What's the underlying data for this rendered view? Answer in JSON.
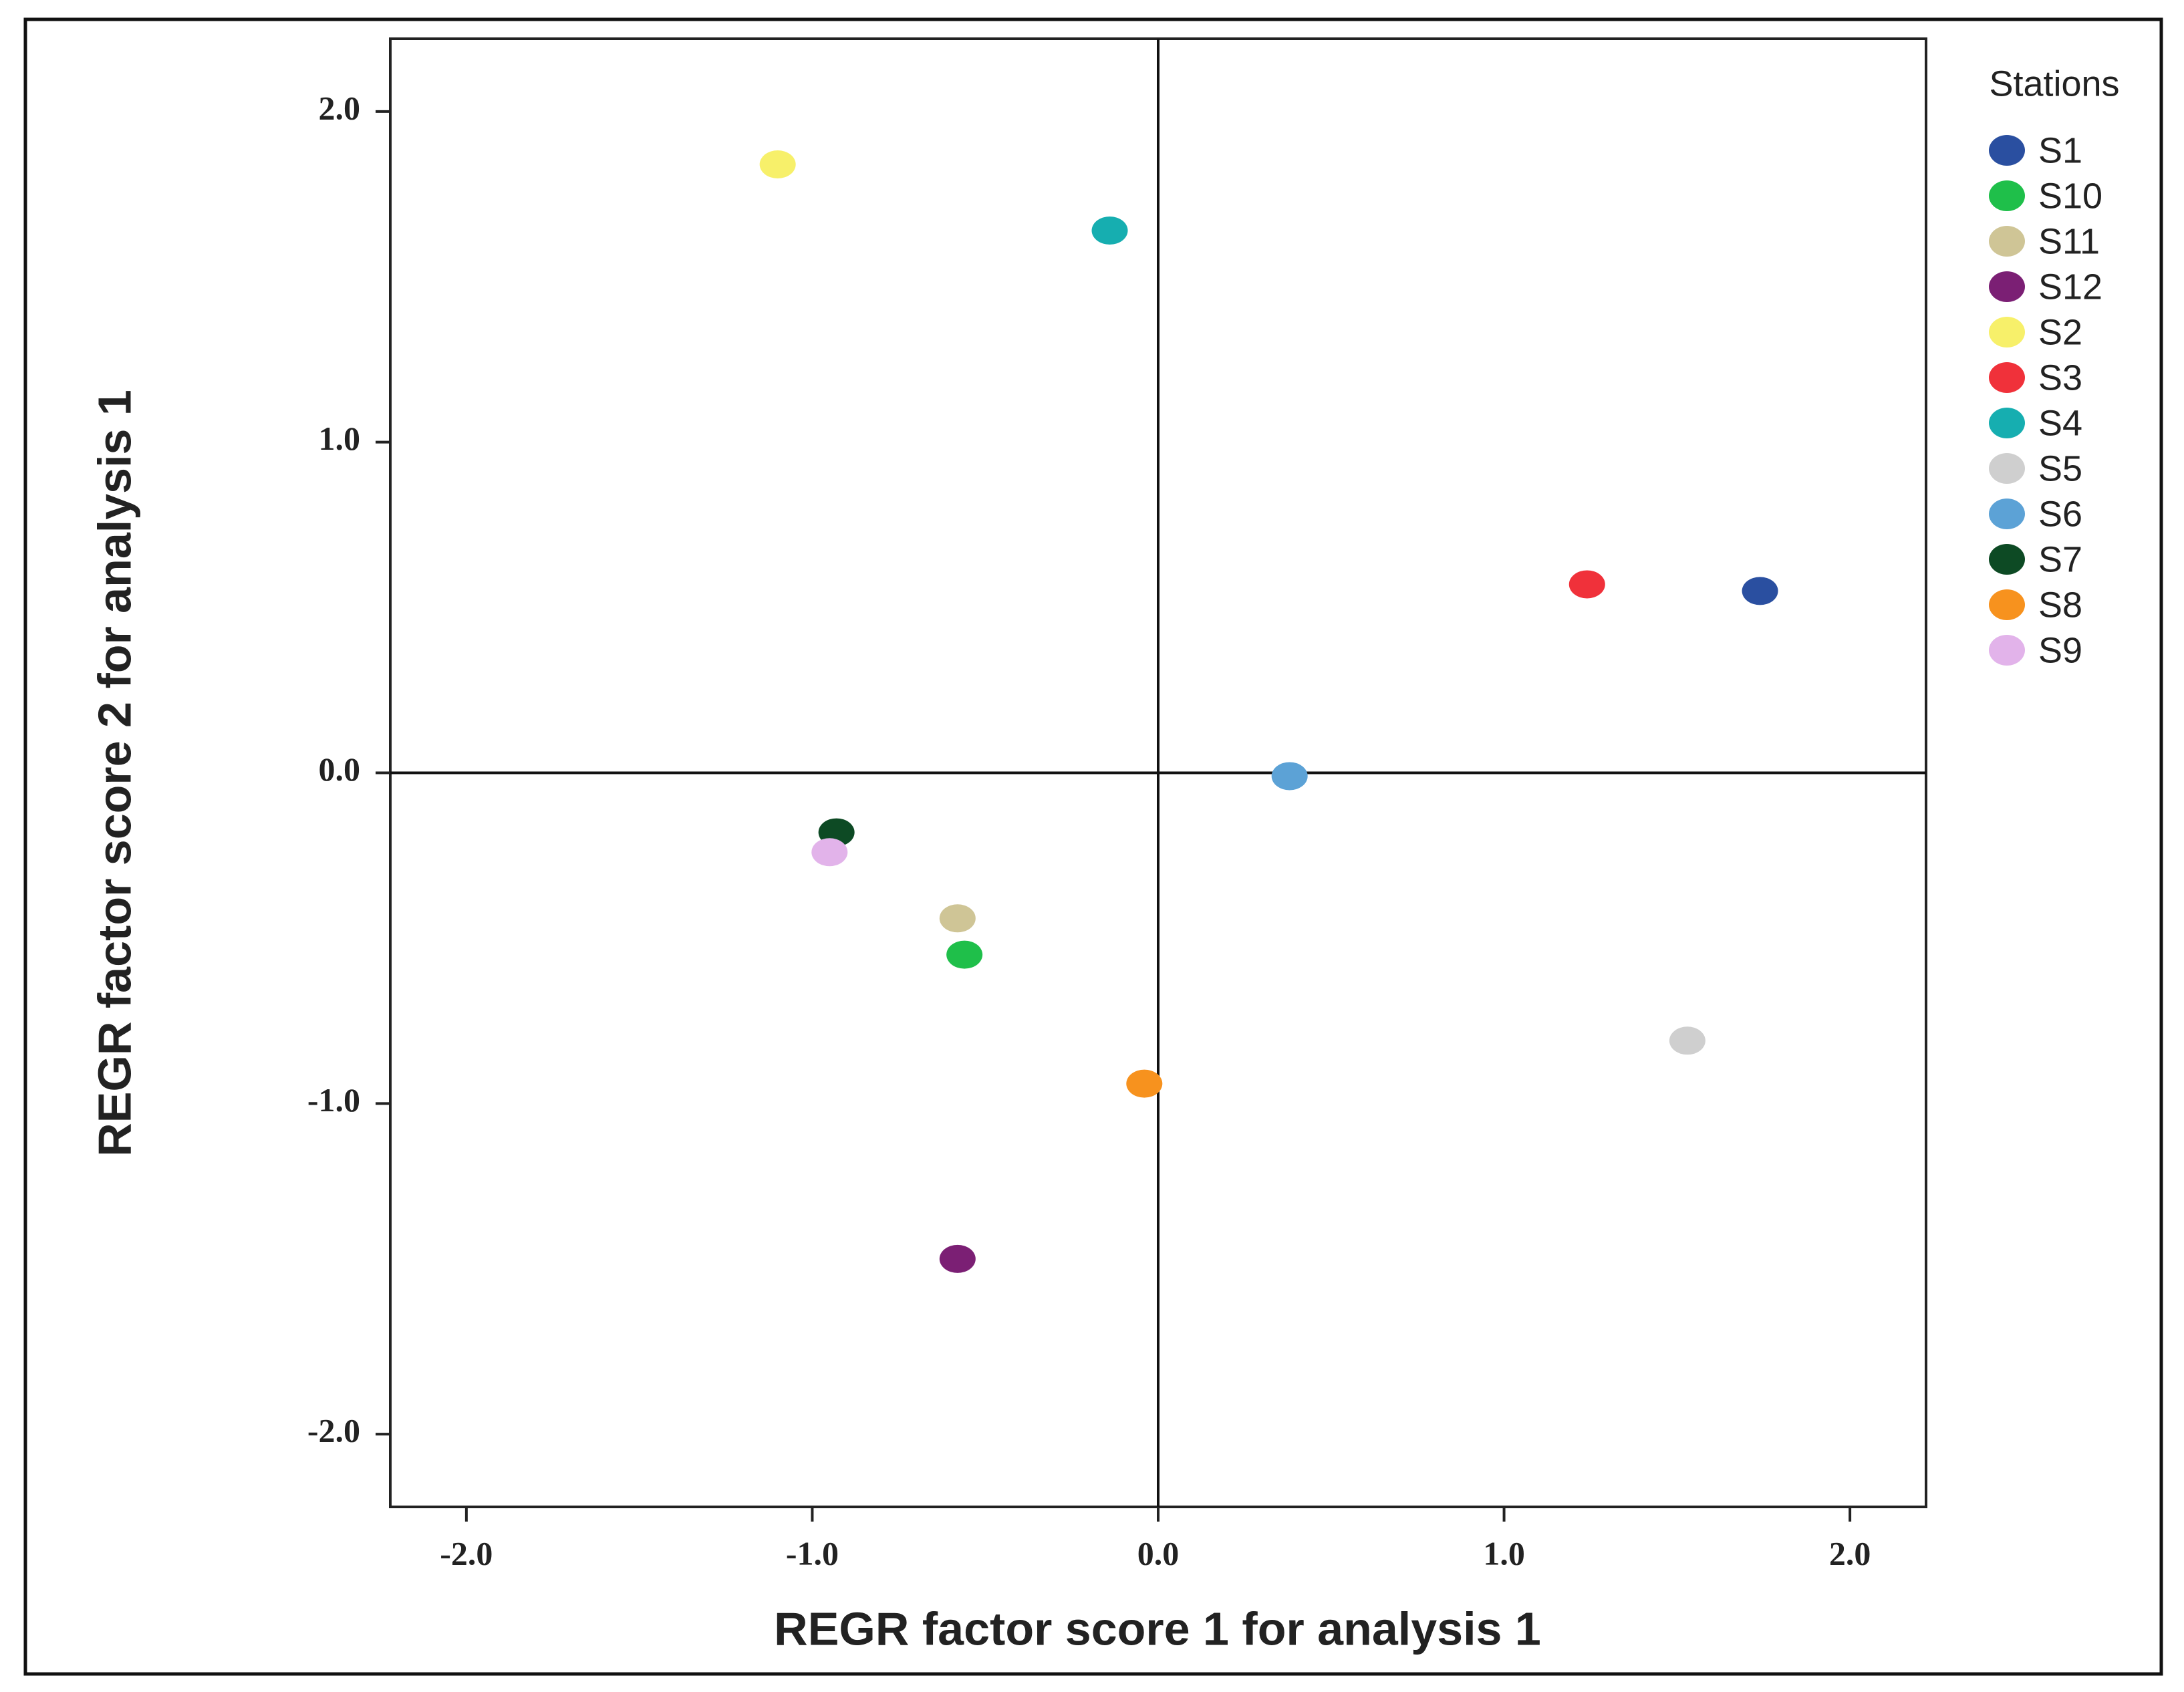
{
  "chart_data": {
    "type": "scatter",
    "x_label": "REGR factor score   1 for analysis 1",
    "y_label": "REGR factor score   2 for analysis 1",
    "legend_title": "Stations",
    "legend": "right",
    "xlim": [
      -2.22,
      2.22
    ],
    "ylim": [
      -2.22,
      2.22
    ],
    "xticks": [
      {
        "value": -2,
        "label": "-2.0"
      },
      {
        "value": -1,
        "label": "-1.0"
      },
      {
        "value": 0,
        "label": "0.0"
      },
      {
        "value": 1,
        "label": "1.0"
      },
      {
        "value": 2,
        "label": "2.0"
      }
    ],
    "yticks": [
      {
        "value": -2,
        "label": "-2.0"
      },
      {
        "value": -1,
        "label": "-1.0"
      },
      {
        "value": 0,
        "label": "0.0"
      },
      {
        "value": 1,
        "label": "1.0"
      },
      {
        "value": 2,
        "label": "2.0"
      }
    ],
    "reference_lines": {
      "x": 0,
      "y": 0
    },
    "series": [
      {
        "name": "S1",
        "color": "#2a4fa0",
        "x": [
          1.74
        ],
        "values": [
          0.55
        ]
      },
      {
        "name": "S10",
        "color": "#1fbf4a",
        "x": [
          -0.56
        ],
        "values": [
          -0.55
        ]
      },
      {
        "name": "S11",
        "color": "#cfc596",
        "x": [
          -0.58
        ],
        "values": [
          -0.44
        ]
      },
      {
        "name": "S12",
        "color": "#7b1f74",
        "x": [
          -0.58
        ],
        "values": [
          -1.47
        ]
      },
      {
        "name": "S2",
        "color": "#f7f06a",
        "x": [
          -1.1
        ],
        "values": [
          1.84
        ]
      },
      {
        "name": "S3",
        "color": "#f0313a",
        "x": [
          1.24
        ],
        "values": [
          0.57
        ]
      },
      {
        "name": "S4",
        "color": "#16aeb0",
        "x": [
          -0.14
        ],
        "values": [
          1.64
        ]
      },
      {
        "name": "S5",
        "color": "#cfcfcf",
        "x": [
          1.53
        ],
        "values": [
          -0.81
        ]
      },
      {
        "name": "S6",
        "color": "#5ca2d6",
        "x": [
          0.38
        ],
        "values": [
          -0.01
        ]
      },
      {
        "name": "S7",
        "color": "#0d4a24",
        "x": [
          -0.93
        ],
        "values": [
          -0.18
        ]
      },
      {
        "name": "S8",
        "color": "#f7921e",
        "x": [
          -0.04
        ],
        "values": [
          -0.94
        ]
      },
      {
        "name": "S9",
        "color": "#e2b3ea",
        "x": [
          -0.95
        ],
        "values": [
          -0.24
        ]
      }
    ]
  }
}
